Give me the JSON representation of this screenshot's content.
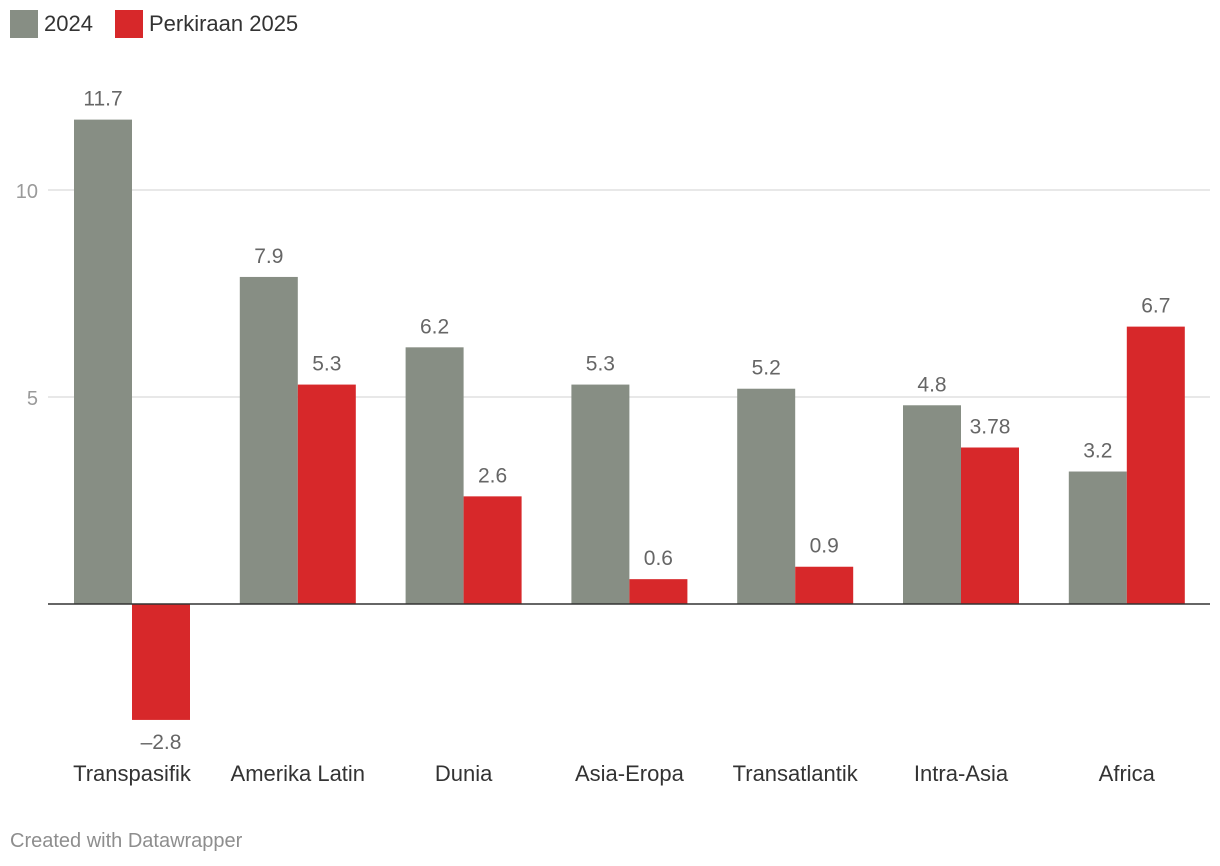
{
  "chart_data": {
    "type": "bar",
    "title": "",
    "xlabel": "",
    "ylabel": "",
    "categories": [
      "Transpasifik",
      "Amerika Latin",
      "Dunia",
      "Asia-Eropa",
      "Transatlantik",
      "Intra-Asia",
      "Africa"
    ],
    "series": [
      {
        "name": "2024",
        "color": "#878e84",
        "values": [
          11.7,
          7.9,
          6.2,
          5.3,
          5.2,
          4.8,
          3.2
        ],
        "labels": [
          "11.7",
          "7.9",
          "6.2",
          "5.3",
          "5.2",
          "4.8",
          "3.2"
        ]
      },
      {
        "name": "Perkiraan 2025",
        "color": "#d7282a",
        "values": [
          -2.8,
          5.3,
          2.6,
          0.6,
          0.9,
          3.78,
          6.7
        ],
        "labels": [
          "–2.8",
          "5.3",
          "2.6",
          "0.6",
          "0.9",
          "3.78",
          "6.7"
        ]
      }
    ],
    "ylim": [
      -3.0,
      12.5
    ],
    "yticks": [
      5,
      10
    ],
    "ytick_labels": [
      "5",
      "10"
    ],
    "grid": true,
    "legend": "top-left"
  },
  "legend": {
    "series_2024": "2024",
    "series_2025": "Perkiraan 2025"
  },
  "colors": {
    "s2024": "#878e84",
    "s2025": "#d7282a"
  },
  "footer": {
    "credit": "Created with Datawrapper"
  }
}
